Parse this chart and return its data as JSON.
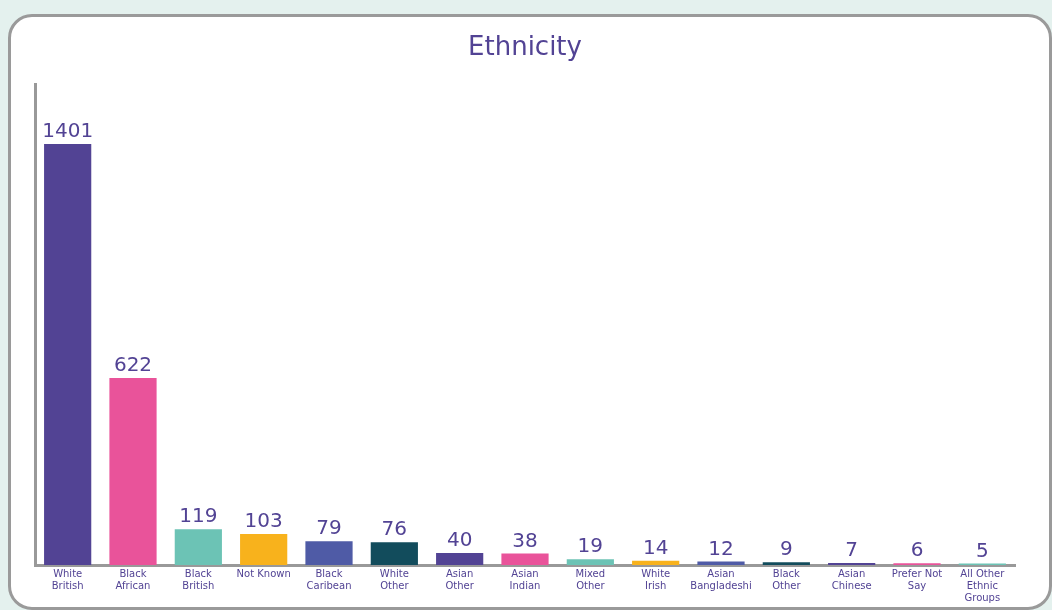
{
  "chart_data": {
    "type": "bar",
    "title": "Ethnicity",
    "categories": [
      "White British",
      "Black African",
      "Black British",
      "Not Known",
      "Black Caribean",
      "White Other",
      "Asian Other",
      "Asian Indian",
      "Mixed Other",
      "White Irish",
      "Asian Bangladeshi",
      "Black Other",
      "Asian Chinese",
      "Prefer Not Say",
      "All Other Ethnic Groups"
    ],
    "values": [
      1401,
      622,
      119,
      103,
      79,
      76,
      40,
      38,
      19,
      14,
      12,
      9,
      7,
      6,
      5
    ],
    "colors": [
      "#524394",
      "#e9539a",
      "#6cc3b5",
      "#f8b21c",
      "#4f5ba6",
      "#124c5c",
      "#524394",
      "#e9539a",
      "#6cc3b5",
      "#f8b21c",
      "#4f5ba6",
      "#124c5c",
      "#524394",
      "#e9539a",
      "#6cc3b5"
    ],
    "data_labels": true,
    "grid": false,
    "legend": false
  }
}
